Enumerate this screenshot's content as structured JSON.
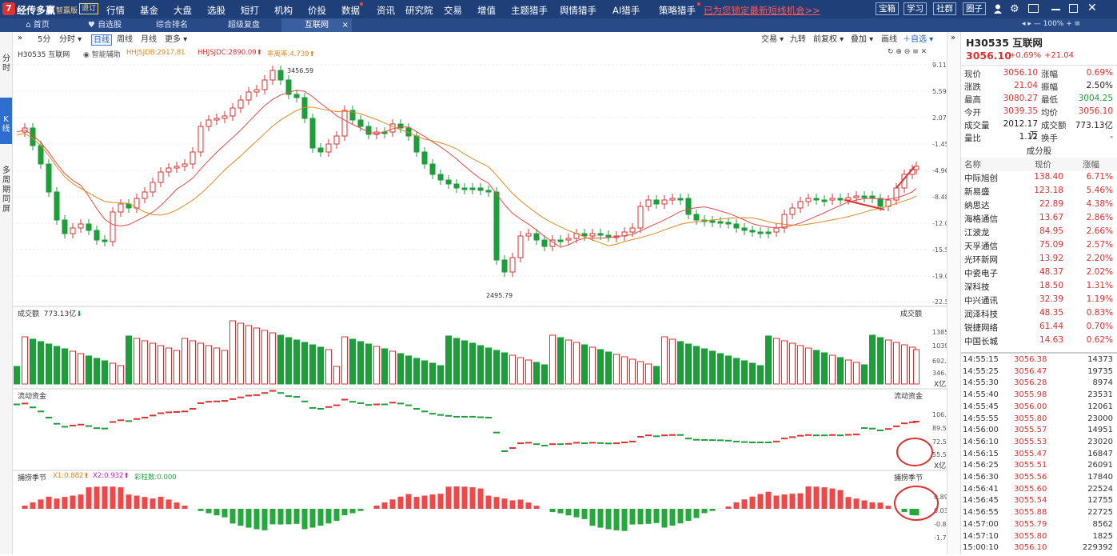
{
  "app": {
    "logo": "经传多赢",
    "edition": "智赢版",
    "badge": "退订"
  },
  "menu": [
    "行情",
    "基金",
    "大盘",
    "选股",
    "短打",
    "机构",
    "价投",
    "数据",
    "资讯",
    "研究院",
    "交易",
    "增值",
    "主题猎手",
    "舆情猎手",
    "AI猎手",
    "策略猎手"
  ],
  "promo": "已为您锁定最新短线机会>>",
  "top_right": {
    "buttons": [
      "宝箱",
      "学习",
      "社群",
      "圈子"
    ],
    "zoom": "100%"
  },
  "tabs": [
    {
      "label": "首页"
    },
    {
      "label": "自选股"
    },
    {
      "label": "综合排名"
    },
    {
      "label": "超级复盘"
    },
    {
      "label": "互联网",
      "close": "×"
    }
  ],
  "left_strip": {
    "minute": "分时",
    "kline": "K线",
    "multi": "多周期同屏"
  },
  "period_toolbar": {
    "items": [
      "5分",
      "分时",
      "日线",
      "周线",
      "月线",
      "更多"
    ],
    "active": "日线"
  },
  "right_toolbar": {
    "items": [
      "交易",
      "九转",
      "前复权",
      "叠加",
      "画线",
      "自选"
    ]
  },
  "main_chart": {
    "name": "H30535 互联网",
    "assist": "智能辅助",
    "indicators": [
      {
        "text": "HHJSJDB:2917.81",
        "color": "#e08a20"
      },
      {
        "text": "HHJSJDC:2890.09",
        "color": "#e03030"
      },
      {
        "text": "乖离率:4.739",
        "color": "#e08a20"
      }
    ],
    "y_labels": [
      "9.11%",
      "5.59%",
      "2.07%",
      "-1.45%",
      "-4.96%",
      "-8.48%",
      "-12.00%",
      "-15.52%",
      "-19.04%",
      "-22.56%"
    ],
    "high_label": "3456.59",
    "low_label": "2495.79"
  },
  "volume_panel": {
    "title": "成交额",
    "value": "773.13亿",
    "right_title": "成交额",
    "y_labels": [
      "1385.42",
      "1039.06",
      "692.71",
      "346.35"
    ],
    "unit": "X亿"
  },
  "fund_panel": {
    "title": "流动资金",
    "right_title": "流动资金",
    "y_labels": [
      "106.54",
      "89.56",
      "72.57",
      "55.59"
    ],
    "unit": "X亿"
  },
  "season_panel": {
    "title": "捕捞季节",
    "x1": "X1:0.882",
    "x2": "X2:0.932",
    "bar_count": "彩柱数:0.000",
    "right_title": "捕捞季节",
    "y_labels": [
      "0.89",
      "0.03",
      "-0.84",
      "-1.70"
    ]
  },
  "quote": {
    "code": "H30535",
    "name": "互联网",
    "price": "3056.10",
    "change_pct": "+0.69%",
    "change": "+21.04",
    "rows": [
      {
        "k1": "现价",
        "v1": "3056.10",
        "c1": "red",
        "k2": "涨幅",
        "v2": "0.69%",
        "c2": "red"
      },
      {
        "k1": "涨跌",
        "v1": "21.04",
        "c1": "red",
        "k2": "振幅",
        "v2": "2.50%",
        "c2": "blk"
      },
      {
        "k1": "最高",
        "v1": "3080.27",
        "c1": "red",
        "k2": "最低",
        "v2": "3004.25",
        "c2": "green"
      },
      {
        "k1": "今开",
        "v1": "3039.35",
        "c1": "red",
        "k2": "均价",
        "v2": "3056.10",
        "c2": "red"
      },
      {
        "k1": "成交量",
        "v1": "2012.17万",
        "c1": "blk",
        "k2": "成交额",
        "v2": "773.13亿",
        "c2": "blk"
      },
      {
        "k1": "量比",
        "v1": "1.12",
        "c1": "blk",
        "k2": "换手",
        "v2": "-",
        "c2": "blk"
      }
    ]
  },
  "components": {
    "title": "成分股",
    "headers": [
      "名称",
      "现价",
      "涨幅"
    ],
    "rows": [
      {
        "name": "中际旭创",
        "price": "138.40",
        "pct": "6.71%"
      },
      {
        "name": "新易盛",
        "price": "123.18",
        "pct": "5.46%"
      },
      {
        "name": "纳思达",
        "price": "22.89",
        "pct": "4.38%"
      },
      {
        "name": "海格通信",
        "price": "13.67",
        "pct": "2.86%"
      },
      {
        "name": "江波龙",
        "price": "84.95",
        "pct": "2.66%"
      },
      {
        "name": "天孚通信",
        "price": "75.09",
        "pct": "2.57%"
      },
      {
        "name": "光环新网",
        "price": "13.92",
        "pct": "2.20%"
      },
      {
        "name": "中瓷电子",
        "price": "48.37",
        "pct": "2.02%"
      },
      {
        "name": "深科技",
        "price": "18.50",
        "pct": "1.31%"
      },
      {
        "name": "中兴通讯",
        "price": "32.39",
        "pct": "1.19%"
      },
      {
        "name": "润泽科技",
        "price": "48.35",
        "pct": "0.83%"
      },
      {
        "name": "锐捷网络",
        "price": "61.44",
        "pct": "0.70%"
      },
      {
        "name": "中国长城",
        "price": "14.63",
        "pct": "0.62%"
      }
    ]
  },
  "ticks": [
    {
      "t": "14:55:15",
      "p": "3056.38",
      "v": "14373"
    },
    {
      "t": "14:55:25",
      "p": "3056.47",
      "v": "19735"
    },
    {
      "t": "14:55:30",
      "p": "3056.28",
      "v": "8974"
    },
    {
      "t": "14:55:40",
      "p": "3055.98",
      "v": "23531"
    },
    {
      "t": "14:55:45",
      "p": "3056.00",
      "v": "12061"
    },
    {
      "t": "14:55:55",
      "p": "3055.80",
      "v": "23000"
    },
    {
      "t": "14:56:00",
      "p": "3055.57",
      "v": "14951"
    },
    {
      "t": "14:56:10",
      "p": "3055.53",
      "v": "23020"
    },
    {
      "t": "14:56:15",
      "p": "3055.47",
      "v": "16847"
    },
    {
      "t": "14:56:25",
      "p": "3055.51",
      "v": "26091"
    },
    {
      "t": "14:56:30",
      "p": "3055.56",
      "v": "17840"
    },
    {
      "t": "14:56:41",
      "p": "3055.60",
      "v": "22524"
    },
    {
      "t": "14:56:45",
      "p": "3055.54",
      "v": "12755"
    },
    {
      "t": "14:56:55",
      "p": "3055.88",
      "v": "22725"
    },
    {
      "t": "14:57:00",
      "p": "3055.79",
      "v": "8562"
    },
    {
      "t": "14:57:10",
      "p": "3055.80",
      "v": "1825"
    },
    {
      "t": "15:00:10",
      "p": "3056.10",
      "v": "229392"
    }
  ],
  "colors": {
    "up": "#e03030",
    "down": "#1e9e3a",
    "ma1": "#e08a20",
    "ma2": "#e84a4a",
    "nav": "#1f3f79"
  }
}
